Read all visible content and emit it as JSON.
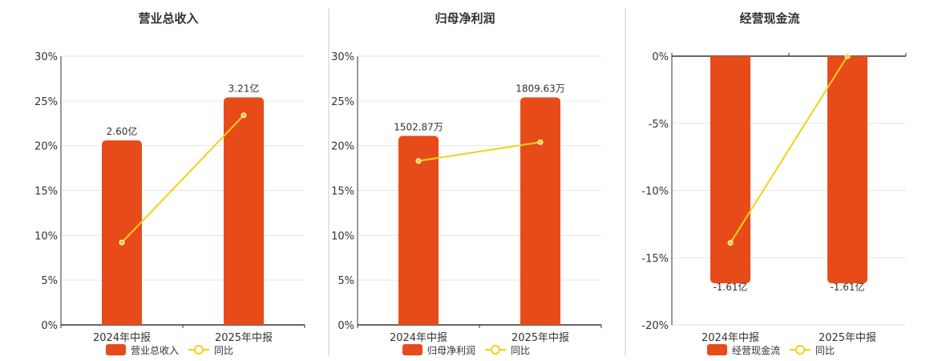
{
  "colors": {
    "bar": "#e84b1a",
    "line": "#f2d21b",
    "axis": "#333333",
    "grid": "#e6e6e6",
    "divider": "#cccccc"
  },
  "chart_data": [
    {
      "type": "bar",
      "title": "营业总收入",
      "categories": [
        "2024年中报",
        "2025年中报"
      ],
      "bar_values_percent": [
        20.6,
        25.4
      ],
      "bar_labels": [
        "2.60亿",
        "3.21亿"
      ],
      "line_values_percent": [
        9.2,
        23.4
      ],
      "ylim": [
        0,
        30
      ],
      "yticks": [
        0,
        5,
        10,
        15,
        20,
        25,
        30
      ],
      "ytick_labels": [
        "0%",
        "5%",
        "10%",
        "15%",
        "20%",
        "25%",
        "30%"
      ],
      "legend": {
        "bar": "营业总收入",
        "line": "同比",
        "placement": "bottom"
      },
      "grid": true
    },
    {
      "type": "bar",
      "title": "归母净利润",
      "categories": [
        "2024年中报",
        "2025年中报"
      ],
      "bar_values_percent": [
        21.1,
        25.4
      ],
      "bar_labels": [
        "1502.87万",
        "1809.63万"
      ],
      "line_values_percent": [
        18.3,
        20.4
      ],
      "ylim": [
        0,
        30
      ],
      "yticks": [
        0,
        5,
        10,
        15,
        20,
        25,
        30
      ],
      "ytick_labels": [
        "0%",
        "5%",
        "10%",
        "15%",
        "20%",
        "25%",
        "30%"
      ],
      "legend": {
        "bar": "归母净利润",
        "line": "同比",
        "placement": "bottom"
      },
      "grid": true
    },
    {
      "type": "bar",
      "title": "经营现金流",
      "categories": [
        "2024年中报",
        "2025年中报"
      ],
      "bar_values_percent": [
        -16.9,
        -16.9
      ],
      "bar_labels": [
        "-1.61亿",
        "-1.61亿"
      ],
      "line_values_percent": [
        -13.9,
        0
      ],
      "ylim": [
        -20,
        0
      ],
      "yticks": [
        -20,
        -15,
        -10,
        -5,
        0
      ],
      "ytick_labels": [
        "-20%",
        "-15%",
        "-10%",
        "-5%",
        "0%"
      ],
      "legend": {
        "bar": "经营现金流",
        "line": "同比",
        "placement": "bottom"
      },
      "grid": true
    }
  ]
}
